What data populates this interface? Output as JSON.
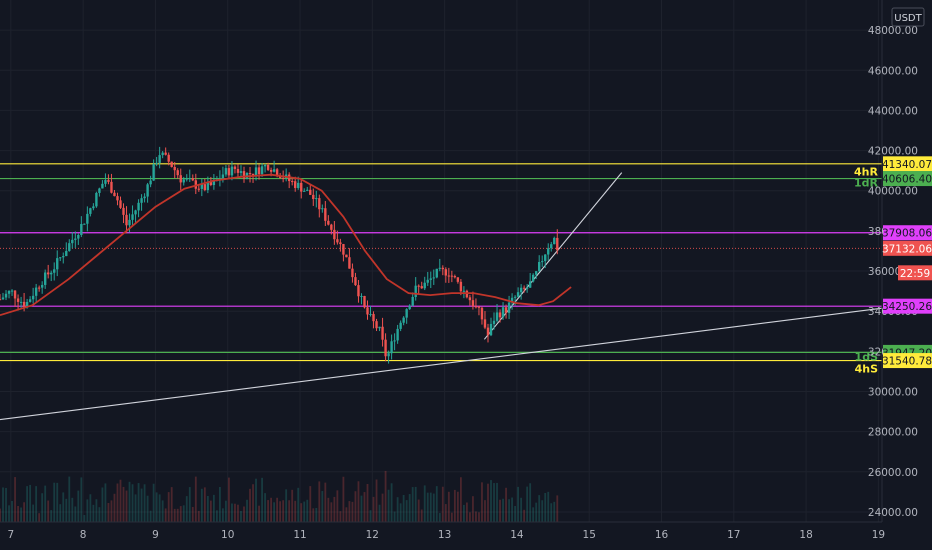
{
  "chart_data": {
    "type": "candlestick",
    "currency": "USDT",
    "ylim": [
      23500,
      49500
    ],
    "xlim": [
      6.85,
      19.05
    ],
    "x_ticks": [
      "7",
      "8",
      "9",
      "10",
      "11",
      "12",
      "13",
      "14",
      "15",
      "16",
      "17",
      "18",
      "19"
    ],
    "y_ticks": [
      "24000.00",
      "26000.00",
      "28000.00",
      "30000.00",
      "32000.00",
      "34000.00",
      "36000.00",
      "38000.00",
      "40000.00",
      "42000.00",
      "44000.00",
      "46000.00",
      "48000.00"
    ],
    "price_path": [
      [
        6.85,
        34600
      ],
      [
        7.0,
        35000
      ],
      [
        7.2,
        34300
      ],
      [
        7.4,
        35400
      ],
      [
        7.6,
        36200
      ],
      [
        7.8,
        37300
      ],
      [
        8.0,
        38400
      ],
      [
        8.15,
        39500
      ],
      [
        8.3,
        40600
      ],
      [
        8.45,
        39800
      ],
      [
        8.6,
        38300
      ],
      [
        8.75,
        39200
      ],
      [
        8.9,
        40300
      ],
      [
        9.05,
        41900
      ],
      [
        9.2,
        41400
      ],
      [
        9.35,
        40600
      ],
      [
        9.5,
        40400
      ],
      [
        9.65,
        40100
      ],
      [
        9.8,
        40300
      ],
      [
        9.95,
        40900
      ],
      [
        10.1,
        41100
      ],
      [
        10.25,
        40800
      ],
      [
        10.4,
        41000
      ],
      [
        10.55,
        41300
      ],
      [
        10.7,
        40900
      ],
      [
        10.85,
        40500
      ],
      [
        11.0,
        40200
      ],
      [
        11.15,
        39800
      ],
      [
        11.3,
        39000
      ],
      [
        11.45,
        38000
      ],
      [
        11.6,
        37000
      ],
      [
        11.75,
        35600
      ],
      [
        11.9,
        34000
      ],
      [
        12.0,
        33500
      ],
      [
        12.1,
        33000
      ],
      [
        12.2,
        31600
      ],
      [
        12.3,
        32700
      ],
      [
        12.45,
        34000
      ],
      [
        12.6,
        35100
      ],
      [
        12.75,
        35400
      ],
      [
        12.9,
        35900
      ],
      [
        13.05,
        36000
      ],
      [
        13.2,
        35300
      ],
      [
        13.35,
        34600
      ],
      [
        13.5,
        33800
      ],
      [
        13.6,
        32800
      ],
      [
        13.7,
        33800
      ],
      [
        13.85,
        34100
      ],
      [
        14.0,
        34800
      ],
      [
        14.15,
        35200
      ],
      [
        14.25,
        35700
      ],
      [
        14.35,
        36600
      ],
      [
        14.45,
        37400
      ],
      [
        14.52,
        37600
      ],
      [
        14.56,
        37132
      ]
    ],
    "moving_average": [
      [
        6.85,
        33800
      ],
      [
        7.3,
        34300
      ],
      [
        7.8,
        35600
      ],
      [
        8.2,
        36800
      ],
      [
        8.6,
        38000
      ],
      [
        9.0,
        39200
      ],
      [
        9.4,
        40100
      ],
      [
        9.8,
        40500
      ],
      [
        10.2,
        40700
      ],
      [
        10.6,
        40800
      ],
      [
        11.0,
        40600
      ],
      [
        11.3,
        40000
      ],
      [
        11.6,
        38700
      ],
      [
        11.9,
        37000
      ],
      [
        12.2,
        35600
      ],
      [
        12.5,
        34900
      ],
      [
        12.8,
        34800
      ],
      [
        13.1,
        34900
      ],
      [
        13.4,
        34900
      ],
      [
        13.7,
        34700
      ],
      [
        14.0,
        34400
      ],
      [
        14.3,
        34300
      ],
      [
        14.5,
        34500
      ],
      [
        14.75,
        35200
      ]
    ],
    "trend_lines": [
      {
        "color": "#d1d4dc",
        "points": [
          [
            6.85,
            28600
          ],
          [
            19.05,
            34150
          ]
        ]
      },
      {
        "color": "#d1d4dc",
        "points": [
          [
            13.55,
            32600
          ],
          [
            15.45,
            40900
          ]
        ]
      }
    ],
    "levels": [
      {
        "label": "41340.07",
        "value": 41340.07,
        "color": "#ffeb3b",
        "text_color": "#131722"
      },
      {
        "label": "40606.40",
        "value": 40606.4,
        "color": "#4caf50",
        "text_color": "#131722"
      },
      {
        "label": "37908.06",
        "value": 37908.06,
        "color": "#e040fb",
        "text_color": "#131722"
      },
      {
        "label": "34250.26",
        "value": 34250.26,
        "color": "#e040fb",
        "text_color": "#131722"
      },
      {
        "label": "31947.20",
        "value": 31947.2,
        "color": "#4caf50",
        "text_color": "#131722"
      },
      {
        "label": "31540.78",
        "value": 31540.78,
        "color": "#ffeb3b",
        "text_color": "#131722"
      }
    ],
    "current_price": {
      "label": "37132.06",
      "value": 37132.06,
      "timer": "22:59",
      "color": "#ef5350"
    },
    "annotations": [
      {
        "text": "4hR",
        "color": "#ffeb3b",
        "value": 40950
      },
      {
        "text": "1dR",
        "color": "#4caf50",
        "value": 40400
      },
      {
        "text": "1dS",
        "color": "#4caf50",
        "value": 31750
      },
      {
        "text": "4hS",
        "color": "#ffeb3b",
        "value": 31150
      }
    ]
  }
}
